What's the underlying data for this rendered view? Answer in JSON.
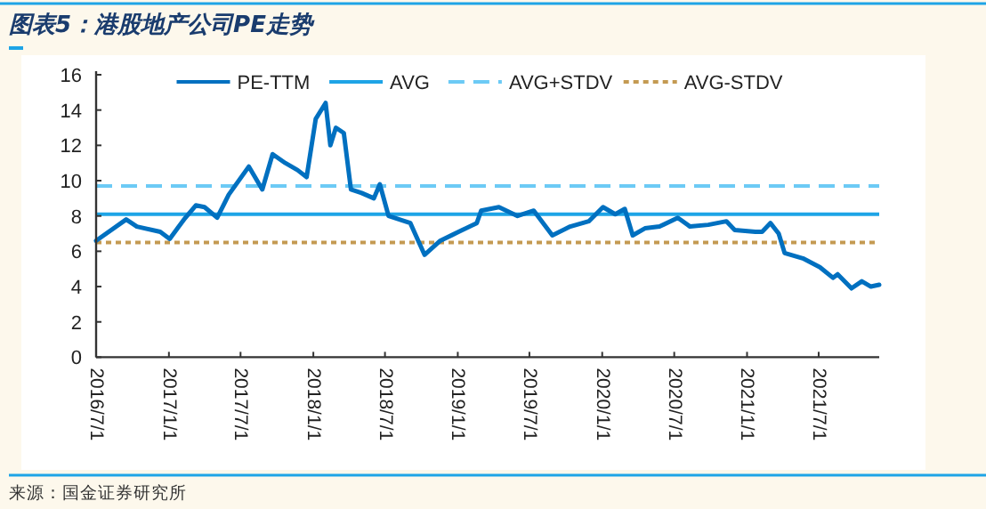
{
  "chart_data": {
    "type": "line",
    "title": "图表5：港股地产公司PE走势",
    "annotations": [
      "来源：国金证券研究所"
    ],
    "x": [
      "2016-07-01",
      "2016-09-15",
      "2016-10-12",
      "2016-12-10",
      "2017-01-03",
      "2017-02-08",
      "2017-03-10",
      "2017-04-01",
      "2017-05-03",
      "2017-06-01",
      "2017-07-22",
      "2017-08-25",
      "2017-09-20",
      "2017-10-22",
      "2017-11-22",
      "2017-12-15",
      "2018-01-07",
      "2018-02-01",
      "2018-02-13",
      "2018-02-27",
      "2018-03-19",
      "2018-04-06",
      "2018-05-03",
      "2018-06-03",
      "2018-06-18",
      "2018-07-10",
      "2018-09-03",
      "2018-09-25",
      "2018-10-09",
      "2018-11-18",
      "2019-01-03",
      "2019-02-18",
      "2019-03-01",
      "2019-04-15",
      "2019-06-01",
      "2019-07-12",
      "2019-08-28",
      "2019-10-12",
      "2019-11-28",
      "2020-01-03",
      "2020-02-03",
      "2020-02-27",
      "2020-03-18",
      "2020-04-18",
      "2020-05-25",
      "2020-07-10",
      "2020-08-10",
      "2020-09-25",
      "2020-11-10",
      "2020-12-01",
      "2021-01-22",
      "2021-02-08",
      "2021-03-01",
      "2021-03-22",
      "2021-04-06",
      "2021-05-22",
      "2021-07-04",
      "2021-08-06",
      "2021-08-18",
      "2021-09-22",
      "2021-10-18",
      "2021-11-10",
      "2021-12-01"
    ],
    "series": [
      {
        "name": "PE-TTM",
        "color": "#0070c0",
        "values": [
          6.6,
          7.8,
          7.4,
          7.1,
          6.7,
          7.8,
          8.6,
          8.5,
          7.9,
          9.2,
          10.8,
          9.5,
          11.5,
          11.0,
          10.6,
          10.2,
          13.5,
          14.4,
          12.0,
          13.0,
          12.7,
          9.5,
          9.3,
          9.0,
          9.8,
          8.0,
          7.6,
          6.5,
          5.8,
          6.6,
          7.1,
          7.6,
          8.3,
          8.5,
          8.0,
          8.3,
          6.9,
          7.4,
          7.7,
          8.5,
          8.1,
          8.4,
          6.9,
          7.3,
          7.4,
          7.9,
          7.4,
          7.5,
          7.7,
          7.2,
          7.1,
          7.1,
          7.6,
          7.0,
          5.9,
          5.6,
          5.1,
          4.5,
          4.7,
          3.9,
          4.3,
          4.0,
          4.1
        ]
      }
    ],
    "ref_lines": [
      {
        "axis": "y",
        "value": 8.1,
        "label": "AVG",
        "color": "#1ea4e6",
        "line_style": "solid"
      },
      {
        "axis": "y",
        "value": 9.7,
        "label": "AVG+STDV",
        "color": "#6ccaf5",
        "line_style": "dashed"
      },
      {
        "axis": "y",
        "value": 6.5,
        "label": "AVG-STDV",
        "color": "#c49a52",
        "line_style": "dotted"
      }
    ],
    "xlim": [
      "2016-07-01",
      "2021-12-01"
    ],
    "xticks": [
      {
        "value": "2016-07-01",
        "label": "2016/7/1"
      },
      {
        "value": "2017-01-01",
        "label": "2017/1/1"
      },
      {
        "value": "2017-07-01",
        "label": "2017/7/1"
      },
      {
        "value": "2018-01-01",
        "label": "2018/1/1"
      },
      {
        "value": "2018-07-01",
        "label": "2018/7/1"
      },
      {
        "value": "2019-01-01",
        "label": "2019/1/1"
      },
      {
        "value": "2019-07-01",
        "label": "2019/7/1"
      },
      {
        "value": "2020-01-01",
        "label": "2020/1/1"
      },
      {
        "value": "2020-07-01",
        "label": "2020/7/1"
      },
      {
        "value": "2021-01-01",
        "label": "2021/1/1"
      },
      {
        "value": "2021-07-01",
        "label": "2021/7/1"
      }
    ],
    "ylim": [
      0,
      16
    ],
    "yticks": [
      0,
      2,
      4,
      6,
      8,
      10,
      12,
      14,
      16
    ],
    "grid": false,
    "legend": "top",
    "marker": "none",
    "line_style": "solid"
  }
}
